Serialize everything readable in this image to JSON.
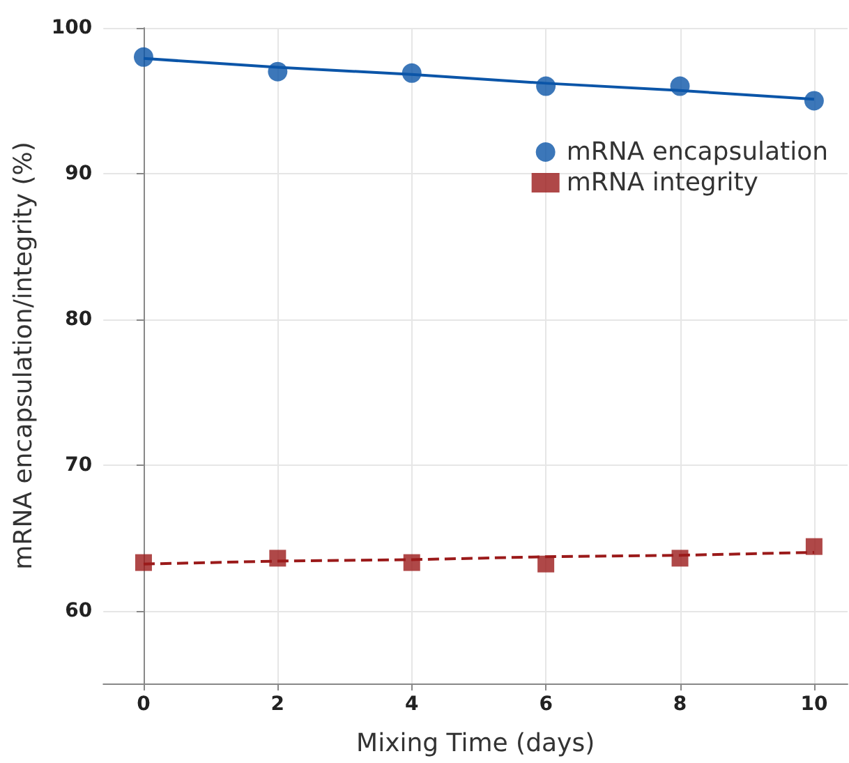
{
  "chart_data": {
    "type": "scatter",
    "xlabel": "Mixing Time (days)",
    "ylabel": "mRNA encapsulation/integrity (%)",
    "x": [
      0,
      2,
      4,
      6,
      8,
      10
    ],
    "series": [
      {
        "name": "mRNA encapsulation",
        "color": "#0b55a8",
        "values": [
          98.0,
          97.0,
          96.9,
          96.0,
          96.0,
          95.0
        ],
        "marker": "circle"
      },
      {
        "name": "mRNA integrity",
        "color": "#9b1a1a",
        "values": [
          63.3,
          63.6,
          63.3,
          63.2,
          63.6,
          64.4
        ],
        "marker": "square"
      },
      {
        "type": "line",
        "color": "#0b55a8",
        "values": [
          97.9,
          97.3,
          96.8,
          96.2,
          95.7,
          95.1
        ],
        "line_style": "solid",
        "marker": "none"
      },
      {
        "type": "line",
        "color": "#9b1a1a",
        "values": [
          63.2,
          63.4,
          63.5,
          63.7,
          63.8,
          64.0
        ],
        "line_style": "dashed",
        "marker": "none"
      }
    ],
    "xlim": [
      -0.6,
      10.5
    ],
    "xticks": [
      0,
      2,
      4,
      6,
      8,
      10
    ],
    "ylim": [
      55,
      100
    ],
    "yticks": [
      60,
      70,
      80,
      90,
      100
    ],
    "grid": true,
    "legend": "top right"
  }
}
